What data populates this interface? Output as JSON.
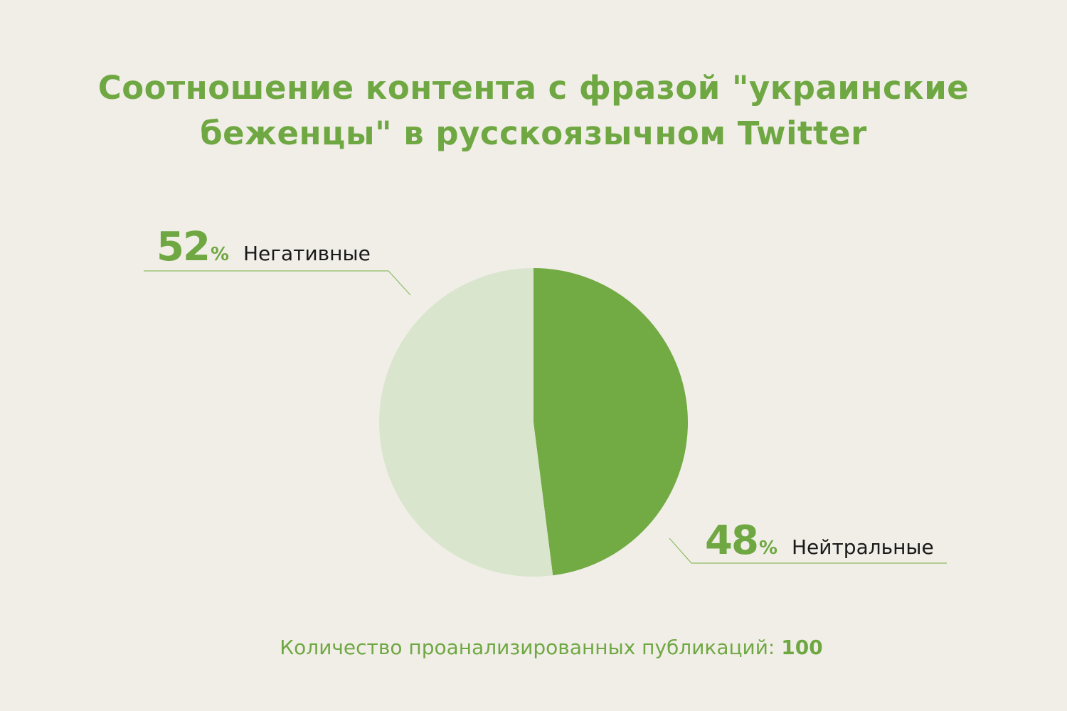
{
  "chart_data": {
    "type": "pie",
    "title_lines": [
      "Соотношение контента с фразой \"украинские",
      "беженцы\" в русскоязычном Twitter"
    ],
    "categories": [
      "Нейтральные",
      "Негативные"
    ],
    "values": [
      48,
      52
    ],
    "unit": "%",
    "colors": [
      "#72aa43",
      "#d9e5cd"
    ]
  },
  "footer": {
    "label": "Количество проанализированных публикаций:",
    "value": "100"
  },
  "colors": {
    "accent": "#6fa842",
    "background": "#f1eee8",
    "text": "#1a1a1a"
  }
}
